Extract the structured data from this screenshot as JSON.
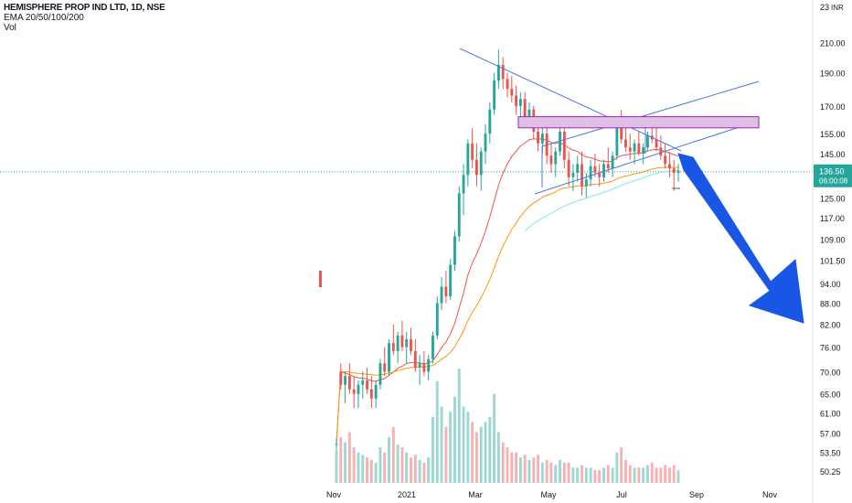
{
  "legend": {
    "title": "HEMISPHERE PROP IND LTD, 1D, NSE",
    "indicator": "EMA 20/50/100/200",
    "volume": "Vol"
  },
  "price_badge": {
    "price": "136.50",
    "countdown": "06:00:08"
  },
  "colors": {
    "up": "#26a69a",
    "down": "#ef5350",
    "ema20": "#ef5350",
    "ema50": "#ff9800",
    "ema100": "#7fe6f2",
    "drawing": "#4a78e0",
    "zone_fill": "#e1bee7",
    "zone_stroke": "#9c27b0",
    "arrow": "#1a56e6",
    "price_line": "#26a69a"
  },
  "chart_data": {
    "type": "candlestick",
    "y_scale": "log",
    "currency": "INR",
    "ylim": [
      48,
      232
    ],
    "y_ticks": [
      "23",
      "210.00",
      "190.00",
      "170.00",
      "155.00",
      "145.00",
      "125.00",
      "117.00",
      "109.00",
      "101.50",
      "94.00",
      "88.00",
      "82.00",
      "76.00",
      "70.00",
      "65.00",
      "61.00",
      "57.00",
      "53.50",
      "50.25"
    ],
    "x_ticks": [
      "Nov",
      "2021",
      "Mar",
      "May",
      "Jul",
      "Sep",
      "Nov"
    ],
    "last_price": 136.5,
    "ohlc": [
      [
        55,
        56,
        54,
        55,
        13
      ],
      [
        70,
        72,
        66,
        67,
        18
      ],
      [
        67,
        70,
        63,
        69,
        16
      ],
      [
        69,
        72,
        65,
        66,
        20
      ],
      [
        66,
        69,
        62,
        65,
        14
      ],
      [
        65,
        68,
        62,
        67,
        12
      ],
      [
        67,
        70,
        64,
        68,
        11
      ],
      [
        68,
        71,
        65,
        66,
        10
      ],
      [
        66,
        69,
        62,
        64,
        9
      ],
      [
        64,
        68,
        62,
        67,
        8
      ],
      [
        67,
        73,
        66,
        72,
        14
      ],
      [
        72,
        76,
        69,
        70,
        12
      ],
      [
        70,
        78,
        69,
        77,
        18
      ],
      [
        77,
        82,
        74,
        75,
        22
      ],
      [
        75,
        80,
        72,
        79,
        15
      ],
      [
        79,
        83,
        75,
        76,
        14
      ],
      [
        76,
        80,
        72,
        78,
        12
      ],
      [
        78,
        81,
        74,
        75,
        10
      ],
      [
        75,
        78,
        70,
        71,
        11
      ],
      [
        71,
        74,
        67,
        72,
        9
      ],
      [
        72,
        75,
        69,
        70,
        8
      ],
      [
        70,
        74,
        68,
        73,
        10
      ],
      [
        73,
        80,
        72,
        79,
        26
      ],
      [
        79,
        90,
        78,
        88,
        40
      ],
      [
        88,
        96,
        86,
        93,
        30
      ],
      [
        93,
        98,
        88,
        90,
        22
      ],
      [
        90,
        102,
        89,
        100,
        28
      ],
      [
        100,
        112,
        98,
        110,
        34
      ],
      [
        110,
        130,
        108,
        127,
        45
      ],
      [
        127,
        140,
        118,
        135,
        30
      ],
      [
        135,
        152,
        130,
        150,
        28
      ],
      [
        150,
        158,
        138,
        142,
        24
      ],
      [
        142,
        150,
        130,
        135,
        20
      ],
      [
        135,
        148,
        128,
        146,
        22
      ],
      [
        146,
        160,
        140,
        155,
        24
      ],
      [
        155,
        172,
        150,
        168,
        26
      ],
      [
        168,
        190,
        165,
        185,
        35
      ],
      [
        185,
        205,
        180,
        195,
        20
      ],
      [
        195,
        200,
        180,
        186,
        16
      ],
      [
        186,
        190,
        175,
        180,
        14
      ],
      [
        180,
        188,
        172,
        176,
        12
      ],
      [
        176,
        182,
        165,
        170,
        12
      ],
      [
        170,
        178,
        164,
        174,
        10
      ],
      [
        174,
        178,
        160,
        164,
        11
      ],
      [
        164,
        172,
        160,
        168,
        9
      ],
      [
        168,
        170,
        152,
        156,
        10
      ],
      [
        156,
        162,
        146,
        150,
        11
      ],
      [
        150,
        158,
        145,
        155,
        8
      ],
      [
        155,
        160,
        140,
        144,
        9
      ],
      [
        144,
        150,
        136,
        140,
        8
      ],
      [
        140,
        148,
        134,
        146,
        7
      ],
      [
        146,
        160,
        144,
        156,
        9
      ],
      [
        156,
        160,
        138,
        142,
        8
      ],
      [
        142,
        146,
        130,
        134,
        8
      ],
      [
        134,
        140,
        128,
        136,
        6
      ],
      [
        136,
        144,
        132,
        140,
        6
      ],
      [
        140,
        146,
        126,
        130,
        7
      ],
      [
        130,
        136,
        125,
        133,
        6
      ],
      [
        133,
        142,
        130,
        139,
        6
      ],
      [
        139,
        145,
        134,
        136,
        5
      ],
      [
        136,
        140,
        130,
        134,
        5
      ],
      [
        134,
        142,
        132,
        140,
        6
      ],
      [
        140,
        148,
        136,
        138,
        7
      ],
      [
        138,
        146,
        134,
        144,
        6
      ],
      [
        144,
        160,
        142,
        158,
        12
      ],
      [
        158,
        168,
        150,
        152,
        14
      ],
      [
        152,
        158,
        146,
        148,
        9
      ],
      [
        148,
        155,
        142,
        146,
        7
      ],
      [
        146,
        152,
        140,
        150,
        6
      ],
      [
        150,
        156,
        144,
        145,
        6
      ],
      [
        145,
        150,
        140,
        148,
        6
      ],
      [
        148,
        156,
        146,
        154,
        7
      ],
      [
        154,
        160,
        150,
        152,
        8
      ],
      [
        152,
        158,
        146,
        148,
        6
      ],
      [
        148,
        154,
        142,
        144,
        6
      ],
      [
        144,
        150,
        138,
        140,
        7
      ],
      [
        140,
        146,
        134,
        138,
        6
      ],
      [
        138,
        142,
        128,
        136,
        7
      ],
      [
        136,
        140,
        132,
        137,
        5
      ]
    ],
    "ema_series": [
      {
        "name": "EMA 20",
        "values": [
          55,
          70,
          69.7,
          69.3,
          68.8,
          68.6,
          68.5,
          68.3,
          67.9,
          67.8,
          68.2,
          68.4,
          69.2,
          69.9,
          70.8,
          71.3,
          71.9,
          72.2,
          72.1,
          72.1,
          71.9,
          72.0,
          72.6,
          74.1,
          75.9,
          77.3,
          79.4,
          82.3,
          86.6,
          91.0,
          96.6,
          100.6,
          103.6,
          107.4,
          111.9,
          117.3,
          123.7,
          130.5,
          135.8,
          140.0,
          143.6,
          146.1,
          148.8,
          150.2,
          151.9,
          152.3,
          152.1,
          152.4,
          151.6,
          150.5,
          149.9,
          150.5,
          149.3,
          147.8,
          146.7,
          146.0,
          144.5,
          143.4,
          143.0,
          142.3,
          141.5,
          141.4,
          141.1,
          141.4,
          143.1,
          144.0,
          144.4,
          144.6,
          145.1,
          145.1,
          145.4,
          146.2,
          146.8,
          147.0,
          146.7,
          146.1,
          145.3,
          144.5,
          143.8
        ]
      },
      {
        "name": "EMA 50",
        "values": [
          55,
          70,
          70,
          69.9,
          69.7,
          69.6,
          69.5,
          69.4,
          69.3,
          69.2,
          69.3,
          69.4,
          69.7,
          69.9,
          70.3,
          70.5,
          70.8,
          71.0,
          71.0,
          71.1,
          71.1,
          71.2,
          71.5,
          72.2,
          73.0,
          73.7,
          74.7,
          76.1,
          78.1,
          80.3,
          83.0,
          85.3,
          87.3,
          89.6,
          92.2,
          95.3,
          98.9,
          102.9,
          106.4,
          109.6,
          112.5,
          115.0,
          117.6,
          119.7,
          121.6,
          123.0,
          124.1,
          125.4,
          126.2,
          126.8,
          127.6,
          128.7,
          129.3,
          129.5,
          129.8,
          130.2,
          130.2,
          130.3,
          130.7,
          130.9,
          131.0,
          131.4,
          131.7,
          132.3,
          133.3,
          134.0,
          134.5,
          134.9,
          135.5,
          135.9,
          136.4,
          137.1,
          137.7,
          138.1,
          138.4,
          138.5,
          138.5,
          138.5,
          138.5
        ]
      },
      {
        "name": "EMA 100",
        "values": [
          null,
          null,
          null,
          null,
          null,
          null,
          null,
          null,
          null,
          null,
          null,
          null,
          null,
          null,
          null,
          null,
          null,
          null,
          null,
          null,
          null,
          null,
          null,
          null,
          null,
          null,
          null,
          null,
          null,
          null,
          null,
          null,
          null,
          null,
          null,
          null,
          null,
          null,
          null,
          null,
          null,
          null,
          null,
          112,
          113.5,
          114.8,
          115.8,
          116.9,
          117.9,
          118.8,
          119.8,
          120.9,
          121.7,
          122.4,
          123.1,
          123.8,
          124.4,
          124.9,
          125.6,
          126.2,
          126.7,
          127.4,
          128.0,
          128.7,
          129.6,
          130.4,
          131.1,
          131.8,
          132.5,
          133.1,
          133.8,
          134.5,
          135.2,
          135.7,
          136.2,
          136.5,
          136.7,
          136.9,
          137.0
        ]
      }
    ],
    "annotations": [
      {
        "type": "rectangle",
        "label": "resistance zone",
        "price_top": 164,
        "price_bottom": 158
      },
      {
        "type": "trendline",
        "label": "descending resistance"
      },
      {
        "type": "channel",
        "label": "ascending channel"
      },
      {
        "type": "arrow",
        "label": "bearish projection"
      }
    ]
  }
}
